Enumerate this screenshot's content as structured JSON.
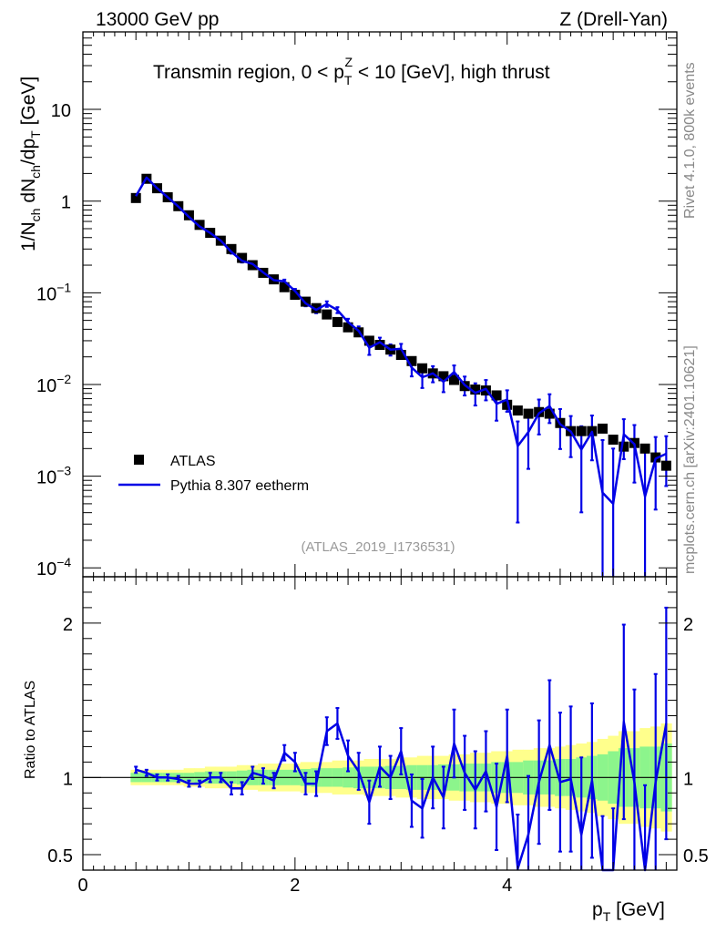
{
  "header": {
    "left": "13000 GeV pp",
    "right": "Z (Drell-Yan)"
  },
  "side_labels": {
    "rivet": "Rivet 4.1.0,  800k events",
    "mcplots": "mcplots.cern.ch [arXiv:2401.10621]"
  },
  "reference": "(ATLAS_2019_I1736531)",
  "chart_data": {
    "type": "line",
    "title": "Transmin region, 0 < p_T^Z < 10 [GeV], high thrust",
    "title_parts": {
      "pre": "Transmin region, 0 < p",
      "sub": "T",
      "sup": "Z",
      "post": " < 10 [GeV], high thrust"
    },
    "xlabel": "p_T [GeV]",
    "xlabel_parts": {
      "main": "p",
      "sub": "T",
      "post": " [GeV]"
    },
    "ylabel": "1/N_ch dN_ch/dp_T [GeV]",
    "ylabel_parts": {
      "a": "1/N",
      "a_sub": "ch",
      "b": " dN",
      "b_sub": "ch",
      "c": "/dp",
      "c_sub": "T",
      "d": " [GeV]"
    },
    "ratio_ylabel": "Ratio to ATLAS",
    "xlim": [
      0,
      5.6
    ],
    "ylim": [
      8e-05,
      70
    ],
    "yscale": "log",
    "ratio_ylim": [
      0.4,
      2.3
    ],
    "x_ticks": [
      "0",
      "2",
      "4"
    ],
    "y_ticks": [
      {
        "value": 10,
        "base": "10",
        "exp": ""
      },
      {
        "value": 1,
        "base": "1",
        "exp": ""
      },
      {
        "value": 0.1,
        "base": "10",
        "exp": "−1"
      },
      {
        "value": 0.01,
        "base": "10",
        "exp": "−2"
      },
      {
        "value": 0.001,
        "base": "10",
        "exp": "−3"
      },
      {
        "value": 0.0001,
        "base": "10",
        "exp": "−4"
      }
    ],
    "ratio_ticks": [
      "0.5",
      "1",
      "2"
    ],
    "ratio_tick_values": [
      0.5,
      1,
      2
    ],
    "legend": {
      "position": "middle-left",
      "entries": [
        "ATLAS",
        "Pythia 8.307 eetherm"
      ]
    },
    "colors": {
      "mc": "#0000e6",
      "band_inner": "#8cf58c",
      "band_outer": "#ffff8c",
      "data": "#000000"
    },
    "x": [
      0.5,
      0.6,
      0.7,
      0.8,
      0.9,
      1.0,
      1.1,
      1.2,
      1.3,
      1.4,
      1.5,
      1.6,
      1.7,
      1.8,
      1.9,
      2.0,
      2.1,
      2.2,
      2.3,
      2.4,
      2.5,
      2.6,
      2.7,
      2.8,
      2.9,
      3.0,
      3.1,
      3.2,
      3.3,
      3.4,
      3.5,
      3.6,
      3.7,
      3.8,
      3.9,
      4.0,
      4.1,
      4.2,
      4.3,
      4.4,
      4.5,
      4.6,
      4.7,
      4.8,
      4.9,
      5.0,
      5.1,
      5.2,
      5.3,
      5.4,
      5.5
    ],
    "atlas": [
      1.08,
      1.75,
      1.38,
      1.1,
      0.88,
      0.7,
      0.55,
      0.45,
      0.37,
      0.3,
      0.24,
      0.2,
      0.165,
      0.14,
      0.115,
      0.095,
      0.08,
      0.068,
      0.058,
      0.048,
      0.042,
      0.037,
      0.03,
      0.027,
      0.024,
      0.021,
      0.018,
      0.015,
      0.0132,
      0.0123,
      0.0112,
      0.0096,
      0.0088,
      0.0086,
      0.0076,
      0.006,
      0.0052,
      0.0048,
      0.005,
      0.0048,
      0.0038,
      0.0031,
      0.0031,
      0.0031,
      0.0033,
      0.0025,
      0.0021,
      0.0023,
      0.002,
      0.0016,
      0.0013
    ],
    "ratio_mc": [
      1.05,
      1.03,
      1.0,
      1.0,
      0.99,
      0.96,
      0.96,
      1.0,
      1.0,
      0.93,
      0.93,
      1.03,
      1.01,
      0.98,
      1.16,
      1.1,
      0.96,
      0.96,
      1.3,
      1.35,
      1.14,
      1.04,
      0.84,
      1.07,
      1.0,
      1.17,
      0.85,
      0.8,
      1.0,
      0.87,
      1.22,
      1.03,
      0.92,
      1.04,
      0.81,
      1.14,
      0.41,
      0.63,
      0.97,
      1.21,
      0.97,
      0.99,
      0.63,
      0.98,
      0.2,
      0.2,
      1.36,
      0.97,
      0.3,
      0.97,
      1.35
    ],
    "ratio_err": [
      0.02,
      0.02,
      0.02,
      0.02,
      0.02,
      0.02,
      0.02,
      0.03,
      0.03,
      0.04,
      0.04,
      0.04,
      0.05,
      0.05,
      0.05,
      0.06,
      0.07,
      0.08,
      0.09,
      0.1,
      0.1,
      0.12,
      0.14,
      0.13,
      0.14,
      0.15,
      0.17,
      0.19,
      0.2,
      0.2,
      0.22,
      0.24,
      0.25,
      0.26,
      0.28,
      0.3,
      0.35,
      0.38,
      0.4,
      0.42,
      0.45,
      0.47,
      0.5,
      0.5,
      0.55,
      0.6,
      0.63,
      0.6,
      0.65,
      0.7,
      0.75
    ],
    "band_inner_half": [
      0.03,
      0.03,
      0.03,
      0.03,
      0.03,
      0.03,
      0.035,
      0.04,
      0.04,
      0.04,
      0.045,
      0.05,
      0.05,
      0.05,
      0.05,
      0.05,
      0.055,
      0.06,
      0.06,
      0.06,
      0.065,
      0.07,
      0.07,
      0.07,
      0.075,
      0.075,
      0.08,
      0.08,
      0.08,
      0.085,
      0.085,
      0.09,
      0.09,
      0.09,
      0.1,
      0.1,
      0.1,
      0.11,
      0.11,
      0.11,
      0.12,
      0.12,
      0.13,
      0.14,
      0.15,
      0.17,
      0.19,
      0.19,
      0.2,
      0.2,
      0.22
    ],
    "band_outer_half": [
      0.05,
      0.05,
      0.05,
      0.05,
      0.05,
      0.06,
      0.06,
      0.07,
      0.07,
      0.07,
      0.08,
      0.08,
      0.09,
      0.09,
      0.09,
      0.09,
      0.1,
      0.1,
      0.1,
      0.11,
      0.11,
      0.11,
      0.12,
      0.12,
      0.12,
      0.13,
      0.13,
      0.14,
      0.14,
      0.14,
      0.15,
      0.15,
      0.16,
      0.16,
      0.17,
      0.17,
      0.18,
      0.18,
      0.19,
      0.19,
      0.2,
      0.21,
      0.22,
      0.23,
      0.25,
      0.27,
      0.3,
      0.3,
      0.32,
      0.33,
      0.35
    ]
  }
}
